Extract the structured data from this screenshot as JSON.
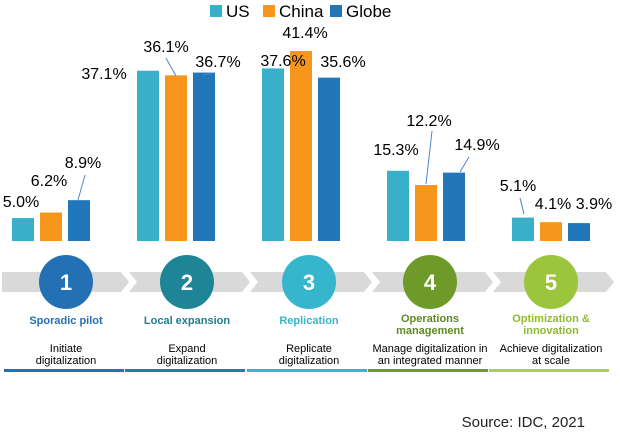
{
  "chart_data": {
    "type": "bar",
    "title": "",
    "xlabel": "",
    "ylabel": "",
    "ylim": [
      0,
      45
    ],
    "grid": false,
    "legend_position": "top-center",
    "categories": [
      "Sporadic pilot",
      "Local expansion",
      "Replication",
      "Operations management",
      "Optimization & innovation"
    ],
    "series": [
      {
        "name": "US",
        "color": "#3aafc9",
        "values": [
          5.0,
          37.1,
          37.6,
          15.3,
          5.1
        ],
        "labels": [
          "5.0%",
          "37.1%",
          "37.6%",
          "15.3%",
          "5.1%"
        ]
      },
      {
        "name": "China",
        "color": "#f7961d",
        "values": [
          6.2,
          36.1,
          41.4,
          12.2,
          4.1
        ],
        "labels": [
          "6.2%",
          "36.1%",
          "41.4%",
          "12.2%",
          "4.1%"
        ]
      },
      {
        "name": "Globe",
        "color": "#2277bb",
        "values": [
          8.9,
          36.7,
          35.6,
          14.9,
          3.9
        ],
        "labels": [
          "8.9%",
          "36.7%",
          "35.6%",
          "14.9%",
          "3.9%"
        ]
      }
    ]
  },
  "stages": [
    {
      "number": "1",
      "name": [
        "Sporadic pilot"
      ],
      "description": [
        "Initiate",
        "digitalization"
      ],
      "circle_color": "#2470b4",
      "name_color": "#2470b4",
      "line_color": "#2470b4"
    },
    {
      "number": "2",
      "name": [
        "Local expansion"
      ],
      "description": [
        "Expand",
        "digitalization"
      ],
      "circle_color": "#1e8596",
      "name_color": "#1e7f8f",
      "line_color": "#1e8596"
    },
    {
      "number": "3",
      "name": [
        "Replication"
      ],
      "description": [
        "Replicate",
        "digitalization"
      ],
      "circle_color": "#36b6cd",
      "name_color": "#36b6cd",
      "line_color": "#36b6cd"
    },
    {
      "number": "4",
      "name": [
        "Operations",
        "management"
      ],
      "description": [
        "Manage digitalization in",
        "an integrated manner"
      ],
      "circle_color": "#6e9a2a",
      "name_color": "#5e8a22",
      "line_color": "#6e9a2a"
    },
    {
      "number": "5",
      "name": [
        "Optimization &",
        "innovation"
      ],
      "description": [
        "Achieve digitalization",
        "at scale"
      ],
      "circle_color": "#9bc53d",
      "name_color": "#8fbb34",
      "line_color": "#a9cf54"
    }
  ],
  "source": "Source: IDC, 2021"
}
